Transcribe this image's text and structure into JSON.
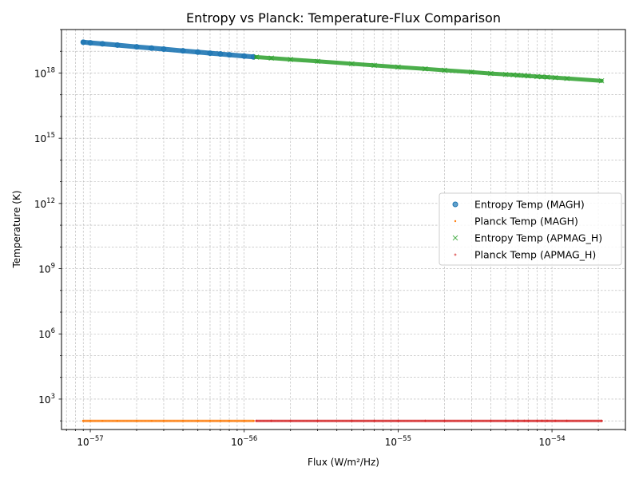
{
  "chart_data": {
    "type": "scatter",
    "title": "Entropy vs Planck: Temperature-Flux Comparison",
    "xlabel": "Flux (W/m²/Hz)",
    "ylabel": "Temperature (K)",
    "xscale": "log",
    "yscale": "log",
    "xlim": [
      6.5e-58,
      3e-54
    ],
    "ylim": [
      40.0,
      1e+20
    ],
    "grid": true,
    "legend_position": "center-right",
    "x_ticks": [
      {
        "value": 1e-57,
        "base": "10",
        "exp": "−57"
      },
      {
        "value": 1e-56,
        "base": "10",
        "exp": "−56"
      },
      {
        "value": 1e-55,
        "base": "10",
        "exp": "−55"
      },
      {
        "value": 1e-54,
        "base": "10",
        "exp": "−54"
      }
    ],
    "y_ticks": [
      {
        "value": 1000.0,
        "base": "10",
        "exp": "3"
      },
      {
        "value": 1000000.0,
        "base": "10",
        "exp": "6"
      },
      {
        "value": 1000000000.0,
        "base": "10",
        "exp": "9"
      },
      {
        "value": 1000000000000.0,
        "base": "10",
        "exp": "12"
      },
      {
        "value": 1000000000000000.0,
        "base": "10",
        "exp": "15"
      },
      {
        "value": 1e+18,
        "base": "10",
        "exp": "18"
      }
    ],
    "series": [
      {
        "name": "Entropy Temp (MAGH)",
        "marker": "circle",
        "color": "#1f77b4",
        "points": [
          [
            9e-58,
            2.62e+19
          ],
          [
            1e-57,
            2.45e+19
          ],
          [
            1.2e-57,
            2.2e+19
          ],
          [
            1.5e-57,
            1.93e+19
          ],
          [
            2e-57,
            1.6e+19
          ],
          [
            2.5e-57,
            1.4e+19
          ],
          [
            3e-57,
            1.26e+19
          ],
          [
            4e-57,
            1.05e+19
          ],
          [
            5e-57,
            9.2e+18
          ],
          [
            6e-57,
            8.2e+18
          ],
          [
            7e-57,
            7.5e+18
          ],
          [
            8e-57,
            6.9e+18
          ],
          [
            1e-56,
            6e+18
          ],
          [
            1.15e-56,
            5.5e+18
          ]
        ]
      },
      {
        "name": "Planck Temp (MAGH)",
        "marker": "dot",
        "color": "#ff7f0e",
        "points": [
          [
            9e-58,
            100
          ],
          [
            1e-57,
            100
          ],
          [
            1.2e-57,
            100
          ],
          [
            1.5e-57,
            100
          ],
          [
            2e-57,
            100
          ],
          [
            2.5e-57,
            100
          ],
          [
            3e-57,
            100
          ],
          [
            4e-57,
            100
          ],
          [
            5e-57,
            100
          ],
          [
            6e-57,
            100
          ],
          [
            7e-57,
            100
          ],
          [
            8e-57,
            100
          ],
          [
            1e-56,
            100
          ],
          [
            1.15e-56,
            100
          ]
        ]
      },
      {
        "name": "Entropy Temp (APMAG_H)",
        "marker": "x",
        "color": "#2ca02c",
        "points": [
          [
            1.2e-56,
            5.4e+18
          ],
          [
            1.5e-56,
            4.85e+18
          ],
          [
            2e-56,
            4.2e+18
          ],
          [
            3e-56,
            3.45e+18
          ],
          [
            5e-56,
            2.65e+18
          ],
          [
            7e-56,
            2.25e+18
          ],
          [
            1e-55,
            1.88e+18
          ],
          [
            1.5e-55,
            1.55e+18
          ],
          [
            2e-55,
            1.34e+18
          ],
          [
            3e-55,
            1.1e+18
          ],
          [
            4e-55,
            9.5e+17
          ],
          [
            5e-55,
            8.6e+17
          ],
          [
            5.6e-55,
            8.2e+17
          ],
          [
            6e-55,
            7.9e+17
          ],
          [
            6.6e-55,
            7.6e+17
          ],
          [
            7e-55,
            7.35e+17
          ],
          [
            8e-55,
            6.9e+17
          ],
          [
            8.6e-55,
            6.7e+17
          ],
          [
            9.3e-55,
            6.45e+17
          ],
          [
            1.05e-54,
            6.1e+17
          ],
          [
            1.25e-54,
            5.6e+17
          ],
          [
            2.1e-54,
            4.4e+17
          ]
        ]
      },
      {
        "name": "Planck Temp (APMAG_H)",
        "marker": "plus",
        "color": "#d62728",
        "points": [
          [
            1.2e-56,
            100
          ],
          [
            1.5e-56,
            100
          ],
          [
            2e-56,
            100
          ],
          [
            3e-56,
            100
          ],
          [
            5e-56,
            100
          ],
          [
            7e-56,
            100
          ],
          [
            1e-55,
            100
          ],
          [
            1.5e-55,
            100
          ],
          [
            2e-55,
            100
          ],
          [
            3e-55,
            100
          ],
          [
            4e-55,
            100
          ],
          [
            5e-55,
            100
          ],
          [
            5.6e-55,
            100
          ],
          [
            6e-55,
            100
          ],
          [
            6.6e-55,
            100
          ],
          [
            7e-55,
            100
          ],
          [
            8e-55,
            100
          ],
          [
            8.6e-55,
            100
          ],
          [
            9.3e-55,
            100
          ],
          [
            1.05e-54,
            100
          ],
          [
            1.25e-54,
            100
          ],
          [
            2.1e-54,
            100
          ]
        ]
      }
    ]
  }
}
